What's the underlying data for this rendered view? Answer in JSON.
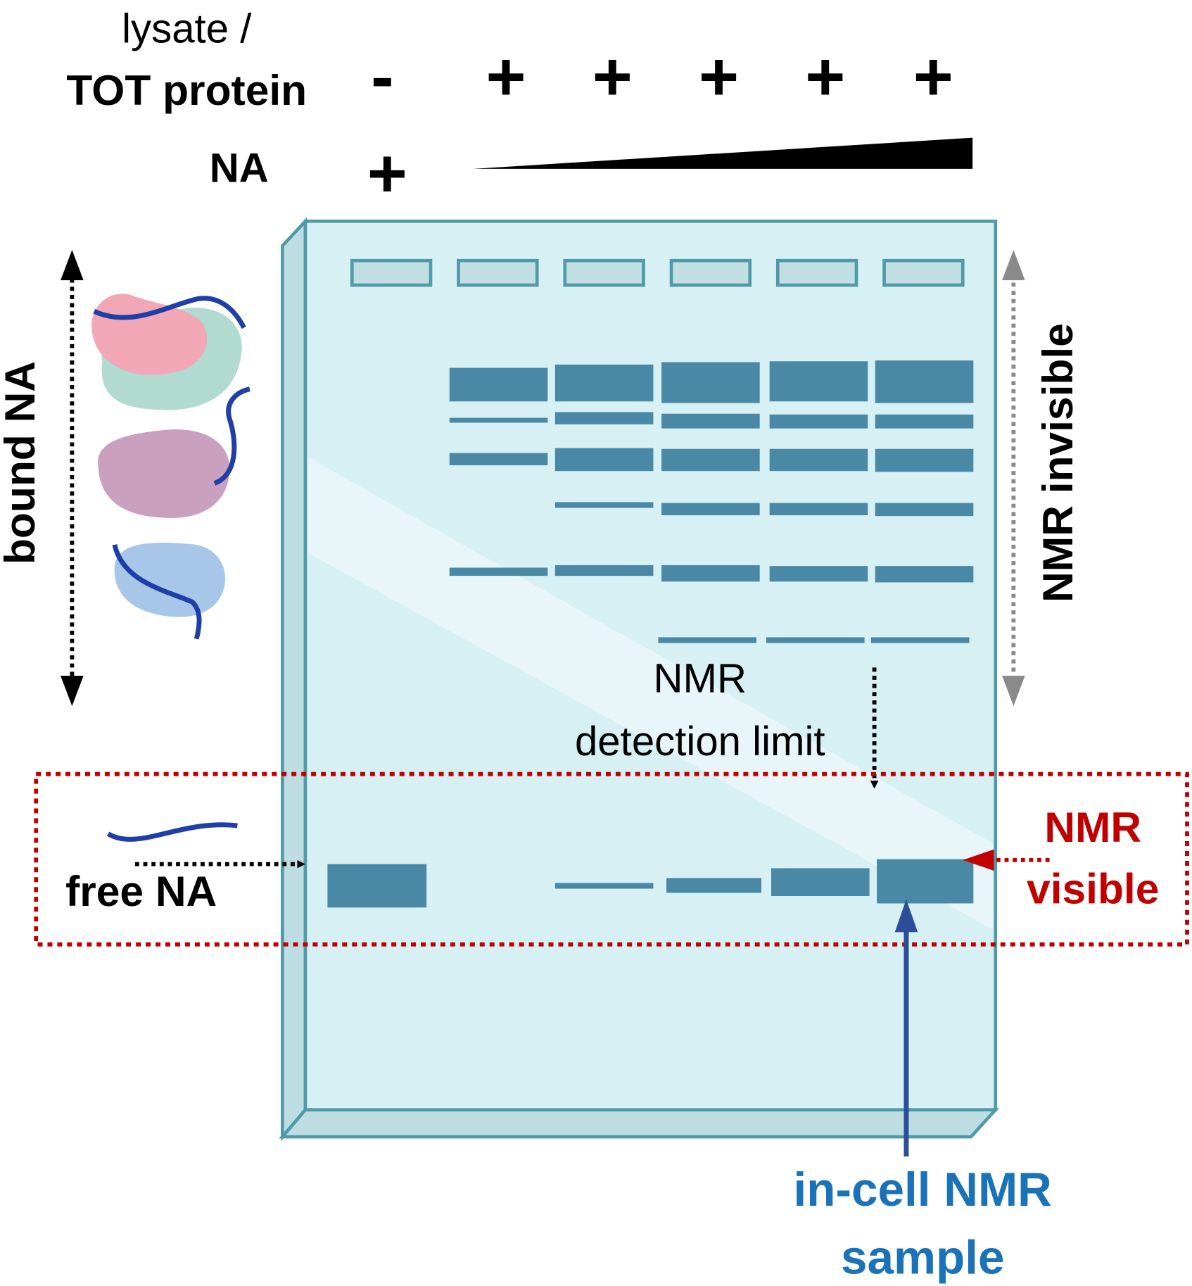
{
  "header": {
    "row1_label_line1": "lysate /",
    "row1_label_line2": "TOT protein",
    "row1_lanes": [
      "-",
      "+",
      "+",
      "+",
      "+",
      "+"
    ],
    "row2_label": "NA",
    "row2_lane1": "+",
    "row2_gradient": "increasing NA wedge"
  },
  "left": {
    "bound_label": "bound NA",
    "free_label": "free NA"
  },
  "right": {
    "invisible_label": "NMR invisible",
    "visible_line1": "NMR",
    "visible_line2": "visible"
  },
  "gel": {
    "lanes": 6,
    "detection_line1": "NMR",
    "detection_line2": "detection limit"
  },
  "bottom": {
    "sample_line1": "in-cell NMR",
    "sample_line2": "sample"
  },
  "colors": {
    "gel_fill": "#d7f0f4",
    "gel_edge": "#4f9aa8",
    "band": "#4a89a6",
    "visible_red": "#c00000",
    "sample_blue": "#1a73b8",
    "arrow_gray": "#8a8a8a"
  }
}
